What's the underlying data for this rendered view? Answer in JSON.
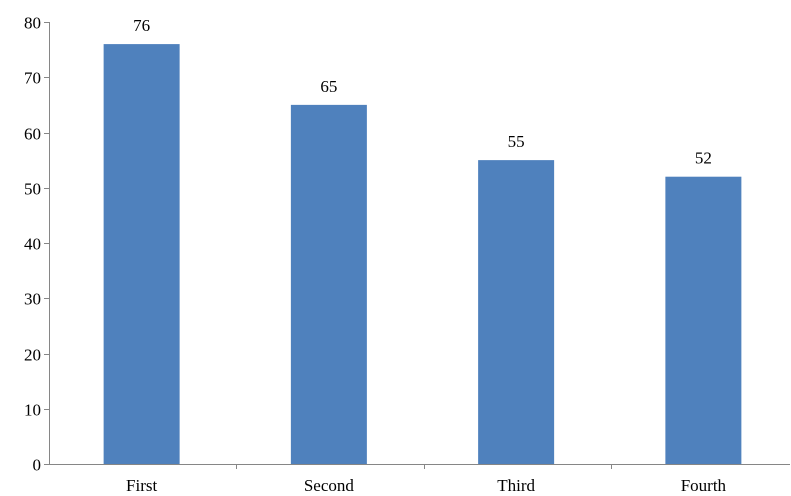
{
  "chart_data": {
    "type": "bar",
    "categories": [
      "First",
      "Second",
      "Third",
      "Fourth"
    ],
    "values": [
      76,
      65,
      55,
      52
    ],
    "data_labels": [
      "76",
      "65",
      "55",
      "52"
    ],
    "y_ticks": [
      0,
      10,
      20,
      30,
      40,
      50,
      60,
      70,
      80
    ],
    "ylim": [
      0,
      80
    ],
    "grid": false,
    "legend": "none",
    "bar_color": "#4F81BD",
    "axis_color": "#868686"
  }
}
